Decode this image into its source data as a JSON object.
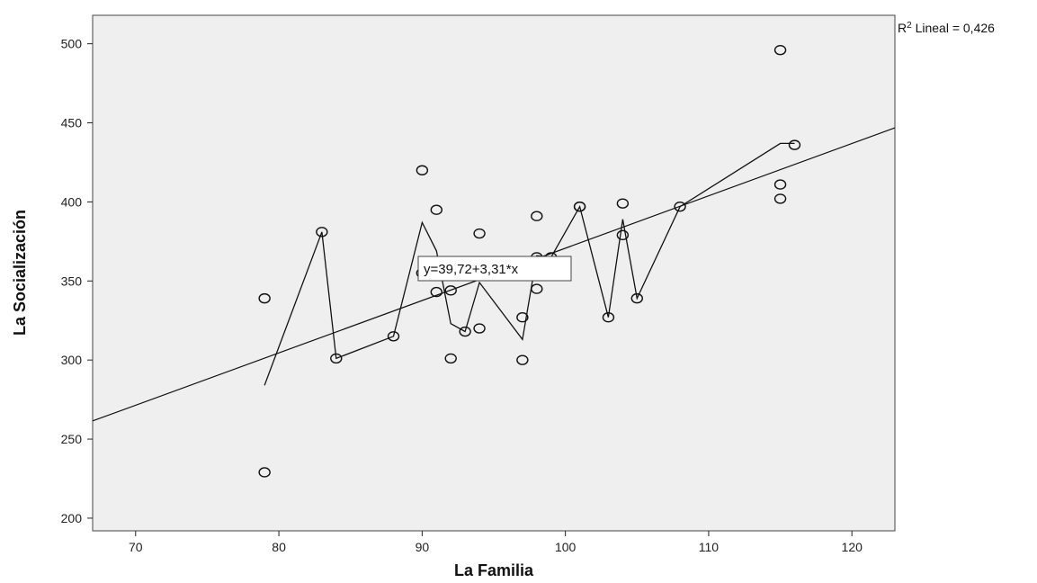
{
  "chart_data": {
    "type": "scatter",
    "xlabel": "La Familia",
    "ylabel": "La Socialización",
    "xlim": [
      67,
      123
    ],
    "ylim": [
      192,
      518
    ],
    "x_ticks": [
      70,
      80,
      90,
      100,
      110,
      120
    ],
    "y_ticks": [
      200,
      250,
      300,
      350,
      400,
      450,
      500
    ],
    "grid": false,
    "background": "#efefef",
    "points": [
      {
        "x": 79,
        "y": 339
      },
      {
        "x": 79,
        "y": 229
      },
      {
        "x": 83,
        "y": 381
      },
      {
        "x": 84,
        "y": 301
      },
      {
        "x": 88,
        "y": 315
      },
      {
        "x": 90,
        "y": 420
      },
      {
        "x": 90,
        "y": 355
      },
      {
        "x": 91,
        "y": 395
      },
      {
        "x": 91,
        "y": 343
      },
      {
        "x": 92,
        "y": 344
      },
      {
        "x": 92,
        "y": 301
      },
      {
        "x": 93,
        "y": 318
      },
      {
        "x": 94,
        "y": 380
      },
      {
        "x": 94,
        "y": 320
      },
      {
        "x": 97,
        "y": 327
      },
      {
        "x": 97,
        "y": 300
      },
      {
        "x": 98,
        "y": 391
      },
      {
        "x": 98,
        "y": 345
      },
      {
        "x": 98,
        "y": 365
      },
      {
        "x": 99,
        "y": 365
      },
      {
        "x": 101,
        "y": 397
      },
      {
        "x": 101,
        "y": 397
      },
      {
        "x": 103,
        "y": 327
      },
      {
        "x": 104,
        "y": 399
      },
      {
        "x": 104,
        "y": 379
      },
      {
        "x": 105,
        "y": 339
      },
      {
        "x": 108,
        "y": 397
      },
      {
        "x": 115,
        "y": 496
      },
      {
        "x": 115,
        "y": 411
      },
      {
        "x": 115,
        "y": 402
      },
      {
        "x": 116,
        "y": 436
      }
    ],
    "fit_line": {
      "intercept": 39.72,
      "slope": 3.31,
      "equation_label": "y=39,72+3,31*x",
      "r2_prefix": "R",
      "r2_sup": "2",
      "r2_text": " Lineal = 0,426"
    },
    "loess_path": [
      {
        "x": 79,
        "y": 284
      },
      {
        "x": 83,
        "y": 381
      },
      {
        "x": 84,
        "y": 301
      },
      {
        "x": 88,
        "y": 315
      },
      {
        "x": 90,
        "y": 387
      },
      {
        "x": 91,
        "y": 369
      },
      {
        "x": 92,
        "y": 323
      },
      {
        "x": 93,
        "y": 318
      },
      {
        "x": 94,
        "y": 349
      },
      {
        "x": 97,
        "y": 313
      },
      {
        "x": 98,
        "y": 366
      },
      {
        "x": 99,
        "y": 365
      },
      {
        "x": 101,
        "y": 397
      },
      {
        "x": 103,
        "y": 327
      },
      {
        "x": 104,
        "y": 389
      },
      {
        "x": 105,
        "y": 339
      },
      {
        "x": 108,
        "y": 397
      },
      {
        "x": 115,
        "y": 437
      },
      {
        "x": 116,
        "y": 437
      }
    ]
  }
}
